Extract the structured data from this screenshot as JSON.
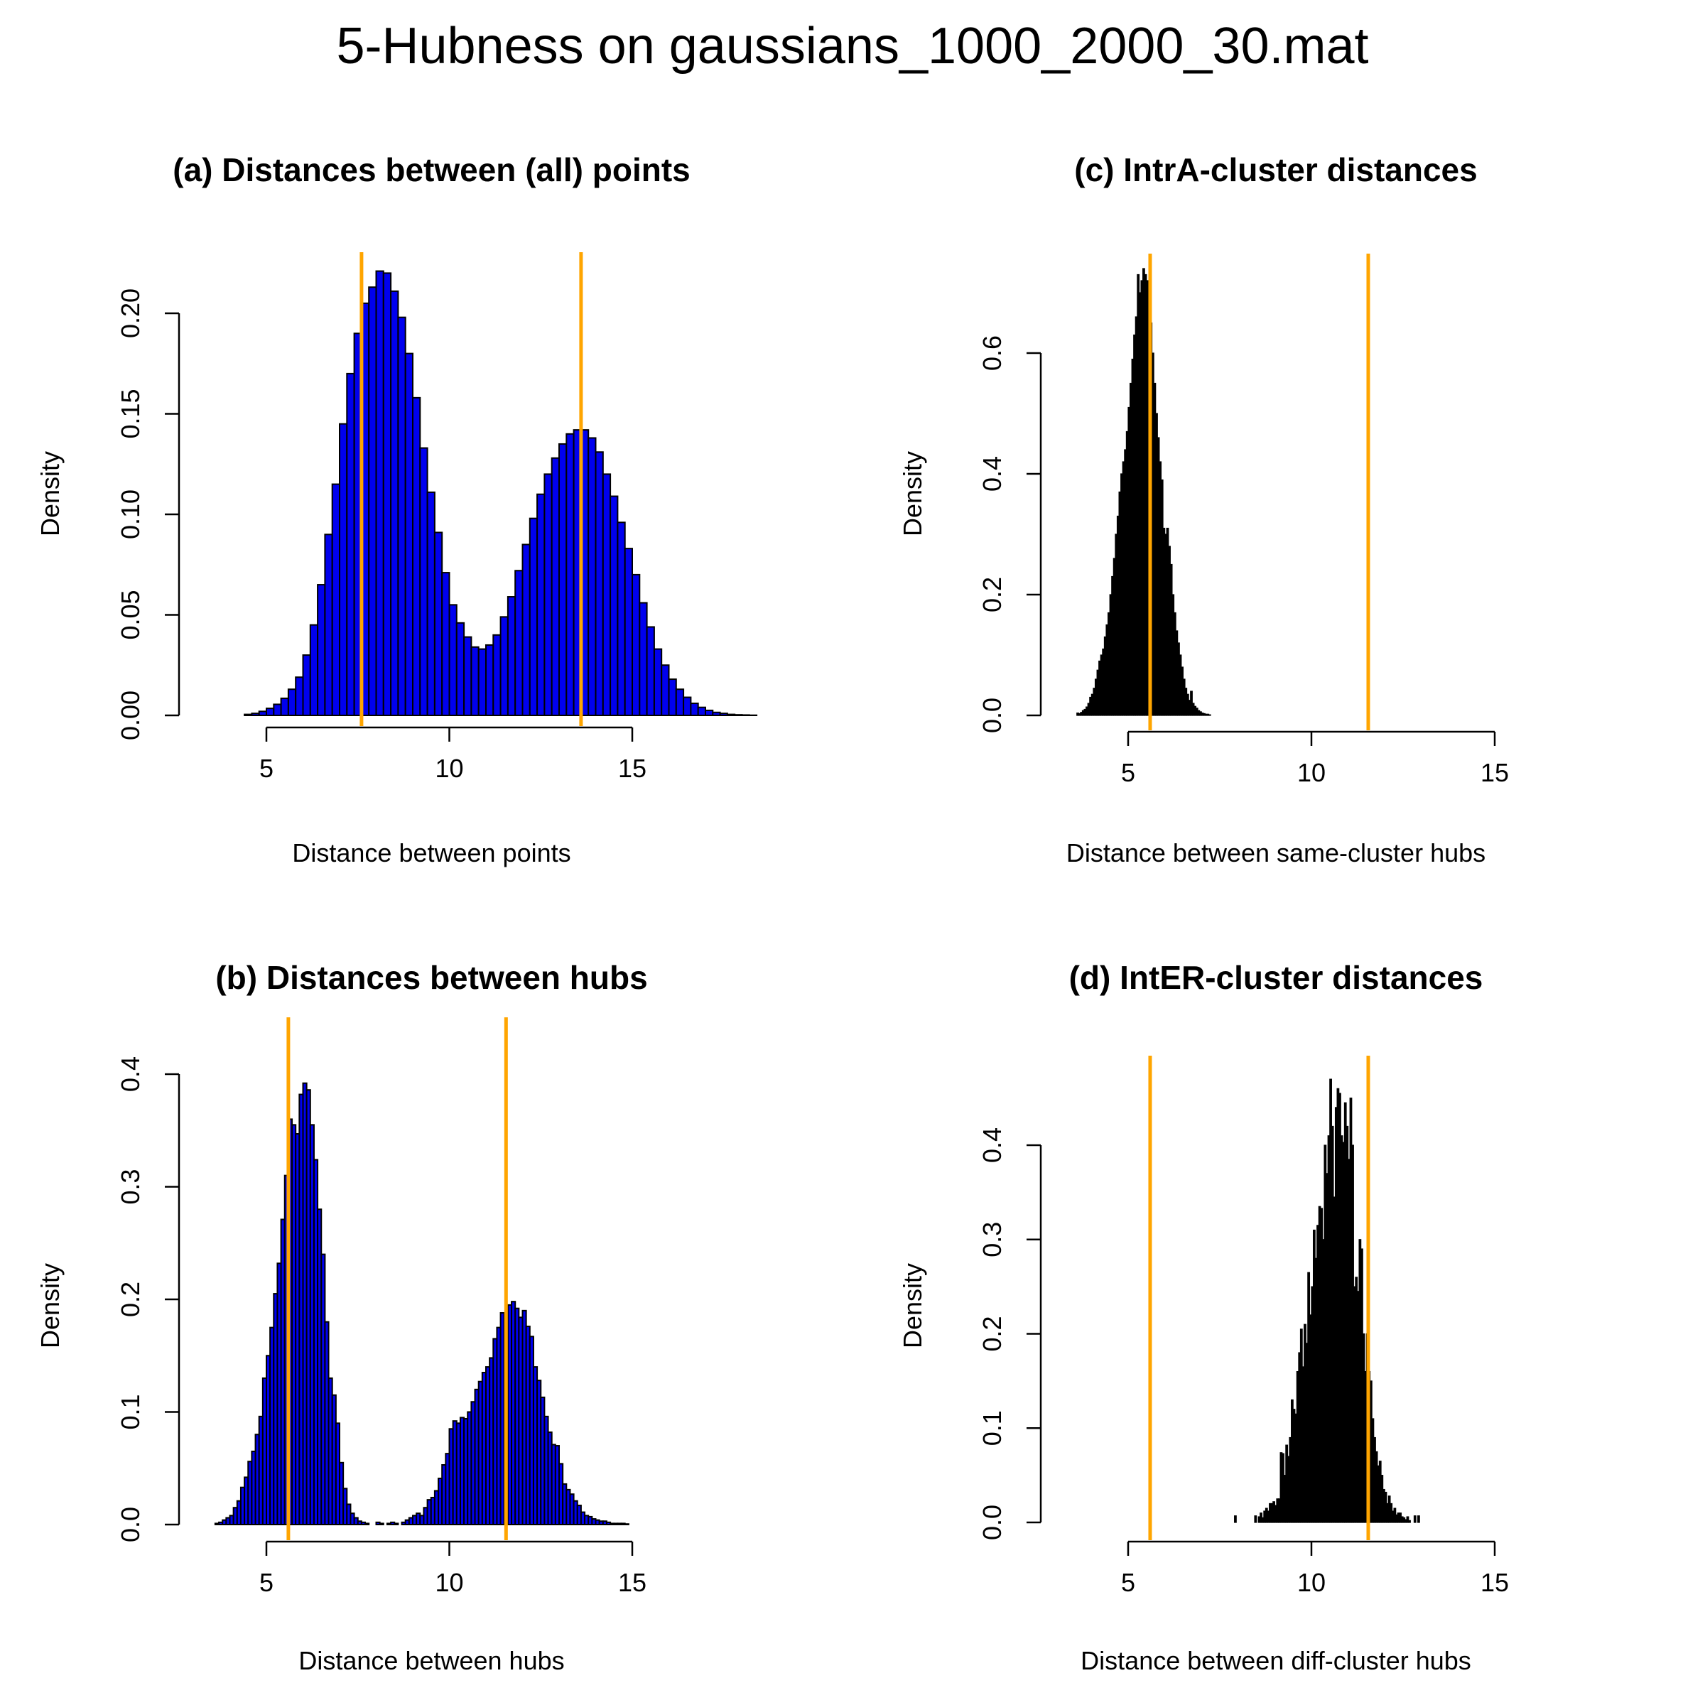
{
  "title": "5-Hubness on gaussians_1000_2000_30.mat",
  "colors": {
    "blue_fill": "#0000ee",
    "black_fill": "#000000",
    "orange_line": "#ffa500",
    "bar_stroke": "#000000"
  },
  "chart_data": [
    {
      "id": "a",
      "type": "bar",
      "title": "(a) Distances between (all) points",
      "xlabel": "Distance between points",
      "ylabel": "Density",
      "xlim": [
        3.2,
        18.6
      ],
      "ylim": [
        0,
        0.22
      ],
      "xticks": [
        5,
        10,
        15
      ],
      "yticks": [
        0.0,
        0.05,
        0.1,
        0.15,
        0.2
      ],
      "ytick_labels": [
        "0.00",
        "0.05",
        "0.10",
        "0.15",
        "0.20"
      ],
      "fill": "blue",
      "bin_start": 3.2,
      "bin_width": 0.2,
      "values": [
        0,
        0,
        0,
        0,
        0,
        0,
        0.0005,
        0.001,
        0.002,
        0.0035,
        0.0055,
        0.0085,
        0.013,
        0.019,
        0.03,
        0.045,
        0.065,
        0.09,
        0.115,
        0.145,
        0.17,
        0.19,
        0.205,
        0.213,
        0.221,
        0.22,
        0.211,
        0.198,
        0.18,
        0.158,
        0.133,
        0.111,
        0.091,
        0.071,
        0.055,
        0.046,
        0.039,
        0.034,
        0.033,
        0.035,
        0.04,
        0.049,
        0.059,
        0.072,
        0.085,
        0.098,
        0.11,
        0.12,
        0.128,
        0.135,
        0.14,
        0.142,
        0.142,
        0.138,
        0.131,
        0.12,
        0.109,
        0.096,
        0.083,
        0.07,
        0.056,
        0.044,
        0.033,
        0.025,
        0.018,
        0.013,
        0.009,
        0.006,
        0.004,
        0.0025,
        0.0015,
        0.001,
        0.0005,
        0.0003,
        0.0002,
        0.0001,
        0,
        0
      ],
      "vlines": [
        7.6,
        13.6
      ]
    },
    {
      "id": "b",
      "type": "bar",
      "title": "(b) Distances between hubs",
      "xlabel": "Distance between hubs",
      "ylabel": "Density",
      "xlim": [
        3.6,
        15.0
      ],
      "ylim": [
        0,
        0.4
      ],
      "xticks": [
        5,
        10,
        15
      ],
      "yticks": [
        0.0,
        0.1,
        0.2,
        0.3,
        0.4
      ],
      "ytick_labels": [
        "0.0",
        "0.1",
        "0.2",
        "0.3",
        "0.4"
      ],
      "fill": "blue",
      "bin_start": 3.6,
      "bin_width": 0.1,
      "values": [
        0.001,
        0.002,
        0.004,
        0.006,
        0.008,
        0.015,
        0.021,
        0.033,
        0.042,
        0.056,
        0.065,
        0.08,
        0.096,
        0.13,
        0.15,
        0.175,
        0.205,
        0.232,
        0.271,
        0.31,
        0.36,
        0.355,
        0.347,
        0.382,
        0.392,
        0.386,
        0.355,
        0.324,
        0.28,
        0.24,
        0.18,
        0.13,
        0.115,
        0.09,
        0.055,
        0.032,
        0.018,
        0.01,
        0.006,
        0.003,
        0.002,
        0.001,
        0,
        0,
        0.002,
        0.001,
        0,
        0.001,
        0.002,
        0.001,
        0,
        0.002,
        0.004,
        0.006,
        0.008,
        0.01,
        0.008,
        0.015,
        0.022,
        0.024,
        0.03,
        0.041,
        0.053,
        0.063,
        0.085,
        0.092,
        0.09,
        0.095,
        0.094,
        0.1,
        0.109,
        0.12,
        0.127,
        0.135,
        0.14,
        0.148,
        0.165,
        0.175,
        0.188,
        0.187,
        0.195,
        0.198,
        0.192,
        0.184,
        0.19,
        0.176,
        0.167,
        0.14,
        0.128,
        0.113,
        0.096,
        0.082,
        0.071,
        0.07,
        0.054,
        0.036,
        0.031,
        0.027,
        0.021,
        0.017,
        0.011,
        0.008,
        0.007,
        0.005,
        0.004,
        0.003,
        0.003,
        0.002,
        0.001,
        0.001,
        0.001,
        0.001,
        0.0005,
        0,
        0
      ],
      "vlines": [
        5.6,
        11.55
      ]
    },
    {
      "id": "c",
      "type": "bar",
      "title": "(c) IntrA-cluster distances",
      "xlabel": "Distance between same-cluster hubs",
      "ylabel": "Density",
      "xlim": [
        5,
        15
      ],
      "ylim": [
        0,
        0.6
      ],
      "xticks": [
        5,
        10,
        15
      ],
      "yticks": [
        0.0,
        0.2,
        0.4,
        0.6
      ],
      "ytick_labels": [
        "0.0",
        "0.2",
        "0.4",
        "0.6"
      ],
      "fill": "black",
      "bin_start": 3.6,
      "bin_width": 0.05,
      "values": [
        0.004,
        0.003,
        0.005,
        0.008,
        0.01,
        0.014,
        0.02,
        0.03,
        0.035,
        0.045,
        0.06,
        0.075,
        0.09,
        0.1,
        0.11,
        0.13,
        0.15,
        0.17,
        0.2,
        0.23,
        0.26,
        0.3,
        0.33,
        0.37,
        0.4,
        0.42,
        0.44,
        0.47,
        0.51,
        0.55,
        0.59,
        0.63,
        0.66,
        0.73,
        0.7,
        0.72,
        0.74,
        0.73,
        0.72,
        0.7,
        0.65,
        0.6,
        0.55,
        0.5,
        0.46,
        0.42,
        0.39,
        0.31,
        0.3,
        0.31,
        0.28,
        0.25,
        0.2,
        0.17,
        0.14,
        0.12,
        0.1,
        0.08,
        0.06,
        0.045,
        0.035,
        0.025,
        0.04,
        0.02,
        0.015,
        0.012,
        0.008,
        0.006,
        0.004,
        0.003,
        0.002,
        0.002,
        0.001
      ],
      "vlines": [
        5.6,
        11.55
      ]
    },
    {
      "id": "d",
      "type": "bar",
      "title": "(d) IntER-cluster distances",
      "xlabel": "Distance between diff-cluster hubs",
      "ylabel": "Density",
      "xlim": [
        5,
        15
      ],
      "ylim": [
        0,
        0.4
      ],
      "xticks": [
        5,
        10,
        15
      ],
      "yticks": [
        0.0,
        0.1,
        0.2,
        0.3,
        0.4
      ],
      "ytick_labels": [
        "0.0",
        "0.1",
        "0.2",
        "0.3",
        "0.4"
      ],
      "fill": "black",
      "bin_start": 7.9,
      "bin_width": 0.05,
      "values": [
        0.007,
        0,
        0,
        0,
        0,
        0,
        0,
        0,
        0,
        0,
        0,
        0.007,
        0,
        0.006,
        0.01,
        0.005,
        0.012,
        0.015,
        0.012,
        0.02,
        0.02,
        0.022,
        0.018,
        0.025,
        0.025,
        0.074,
        0.073,
        0.05,
        0.082,
        0.07,
        0.09,
        0.13,
        0.12,
        0.115,
        0.16,
        0.18,
        0.205,
        0.165,
        0.21,
        0.19,
        0.265,
        0.22,
        0.25,
        0.31,
        0.28,
        0.315,
        0.335,
        0.333,
        0.3,
        0.4,
        0.37,
        0.41,
        0.47,
        0.42,
        0.345,
        0.44,
        0.46,
        0.455,
        0.41,
        0.403,
        0.445,
        0.42,
        0.385,
        0.45,
        0.4,
        0.25,
        0.26,
        0.245,
        0.3,
        0.29,
        0.2,
        0.16,
        0.2,
        0.16,
        0.15,
        0.11,
        0.09,
        0.075,
        0.06,
        0.065,
        0.05,
        0.035,
        0.032,
        0.02,
        0.028,
        0.02,
        0.012,
        0.015,
        0.008,
        0.01,
        0.01,
        0.006,
        0.005,
        0.003,
        0.006,
        0.002,
        0,
        0,
        0.007,
        0,
        0.007
      ],
      "vlines": [
        5.6,
        11.55
      ]
    }
  ]
}
